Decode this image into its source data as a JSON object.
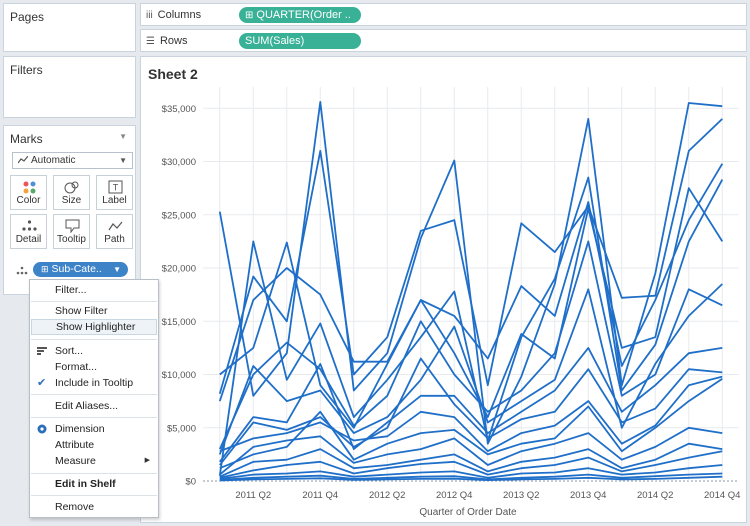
{
  "cards": {
    "pages": {
      "title": "Pages"
    },
    "filters": {
      "title": "Filters"
    },
    "marks": {
      "title": "Marks",
      "mark_type": "Automatic",
      "buttons": [
        {
          "label": "Color",
          "icon": "color-icon"
        },
        {
          "label": "Size",
          "icon": "size-icon"
        },
        {
          "label": "Label",
          "icon": "label-icon"
        },
        {
          "label": "Detail",
          "icon": "detail-icon"
        },
        {
          "label": "Tooltip",
          "icon": "tooltip-icon"
        },
        {
          "label": "Path",
          "icon": "path-icon"
        }
      ],
      "field": "Sub-Cate.."
    }
  },
  "shelves": {
    "columns": {
      "label": "Columns",
      "pill": "QUARTER(Order .."
    },
    "rows": {
      "label": "Rows",
      "pill": "SUM(Sales)"
    }
  },
  "sheet": {
    "title": "Sheet 2"
  },
  "context_menu": {
    "items": [
      {
        "label": "Filter..."
      },
      {
        "label": "Show Filter"
      },
      {
        "label": "Show Highlighter",
        "highlighted": true
      },
      {
        "label": "Sort...",
        "icon": "sort-icon"
      },
      {
        "label": "Format..."
      },
      {
        "label": "Include in Tooltip",
        "icon": "check-icon"
      },
      {
        "label": "Edit Aliases..."
      },
      {
        "label": "Dimension",
        "icon": "radio-selected-icon"
      },
      {
        "label": "Attribute"
      },
      {
        "label": "Measure",
        "icon": "submenu-arrow-icon"
      },
      {
        "label": "Edit in Shelf",
        "bold": true
      },
      {
        "label": "Remove"
      }
    ]
  },
  "colors": {
    "accent": "#3d83c8",
    "line": "#1f6fc9",
    "shelf_pill": "#39b197",
    "grid": "#e8eaee"
  },
  "chart_data": {
    "type": "line",
    "title": "",
    "xlabel": "Quarter of Order Date",
    "ylabel": "",
    "x": [
      "2011 Q1",
      "2011 Q2",
      "2011 Q3",
      "2011 Q4",
      "2012 Q1",
      "2012 Q2",
      "2012 Q3",
      "2012 Q4",
      "2013 Q1",
      "2013 Q2",
      "2013 Q3",
      "2013 Q4",
      "2014 Q1",
      "2014 Q2",
      "2014 Q3",
      "2014 Q4"
    ],
    "x_tick_labels": [
      "2011 Q2",
      "2011 Q4",
      "2012 Q2",
      "2012 Q4",
      "2013 Q2",
      "2013 Q4",
      "2014 Q2",
      "2014 Q4"
    ],
    "y_ticks": [
      0,
      5000,
      10000,
      15000,
      20000,
      25000,
      30000,
      35000
    ],
    "y_tick_labels": [
      "$0",
      "$5,000",
      "$10,000",
      "$15,000",
      "$20,000",
      "$25,000",
      "$30,000",
      "$35,000"
    ],
    "ylim": [
      0,
      37000
    ],
    "grid": true,
    "series": [
      {
        "values": [
          25300,
          8000,
          12000,
          35600,
          8500,
          12000,
          22800,
          30100,
          3500,
          9800,
          18500,
          34000,
          9000,
          19500,
          35500,
          35200
        ]
      },
      {
        "values": [
          8200,
          19200,
          15000,
          31000,
          10000,
          13500,
          23500,
          24500,
          9000,
          24200,
          21500,
          25800,
          17200,
          17400,
          31000,
          34000
        ]
      },
      {
        "values": [
          500,
          22500,
          9500,
          14800,
          6000,
          9500,
          13500,
          17800,
          3800,
          13500,
          19000,
          28500,
          8500,
          12800,
          22500,
          28300
        ]
      },
      {
        "values": [
          10000,
          12500,
          22400,
          9000,
          5000,
          11000,
          17000,
          12000,
          6000,
          13800,
          11500,
          25600,
          12500,
          13500,
          27500,
          22500
        ]
      },
      {
        "values": [
          7500,
          17000,
          20000,
          17500,
          11200,
          11200,
          17000,
          15500,
          11500,
          18300,
          15500,
          26200,
          10800,
          17000,
          24500,
          29800
        ]
      },
      {
        "values": [
          3000,
          10000,
          13000,
          10500,
          5200,
          8000,
          15000,
          10000,
          6500,
          8500,
          12000,
          22500,
          8000,
          10000,
          18000,
          16500
        ]
      },
      {
        "values": [
          2500,
          10800,
          7500,
          8500,
          4500,
          6000,
          9500,
          14500,
          5500,
          7500,
          9500,
          18000,
          5000,
          11000,
          15500,
          18500
        ]
      },
      {
        "values": [
          1800,
          6000,
          5500,
          11000,
          3000,
          5500,
          8000,
          8000,
          4500,
          6500,
          8500,
          12500,
          6500,
          9000,
          12000,
          12500
        ]
      },
      {
        "values": [
          2800,
          4000,
          4500,
          5500,
          3800,
          4200,
          6500,
          6000,
          2800,
          4500,
          5200,
          7500,
          3500,
          5200,
          9000,
          9800
        ]
      },
      {
        "values": [
          1200,
          2500,
          3200,
          6500,
          2000,
          3500,
          4500,
          4800,
          2500,
          3500,
          4000,
          7000,
          2800,
          5000,
          7500,
          9600
        ]
      },
      {
        "values": [
          600,
          3200,
          3800,
          4200,
          1700,
          2500,
          3000,
          4000,
          1500,
          2800,
          3500,
          4500,
          2000,
          3200,
          5000,
          4500
        ]
      },
      {
        "values": [
          400,
          1800,
          2000,
          3000,
          1200,
          1500,
          2000,
          2500,
          900,
          1800,
          2200,
          3000,
          1200,
          2000,
          3500,
          3000
        ]
      },
      {
        "values": [
          300,
          1000,
          1500,
          1800,
          700,
          1200,
          1600,
          1800,
          600,
          1200,
          1500,
          2200,
          900,
          1500,
          2200,
          2800
        ]
      },
      {
        "values": [
          200,
          600,
          700,
          900,
          400,
          600,
          800,
          900,
          300,
          700,
          800,
          1200,
          600,
          800,
          1200,
          1500
        ]
      },
      {
        "values": [
          100,
          300,
          400,
          500,
          200,
          300,
          400,
          450,
          150,
          300,
          400,
          600,
          300,
          450,
          600,
          700
        ]
      },
      {
        "values": [
          50,
          150,
          200,
          250,
          100,
          150,
          200,
          220,
          80,
          150,
          200,
          300,
          150,
          200,
          300,
          400
        ]
      },
      {
        "values": [
          1500,
          5500,
          4800,
          6000,
          3200,
          5000,
          11500,
          7200,
          4000,
          5800,
          6500,
          10500,
          5500,
          6800,
          10500,
          10200
        ]
      }
    ]
  }
}
